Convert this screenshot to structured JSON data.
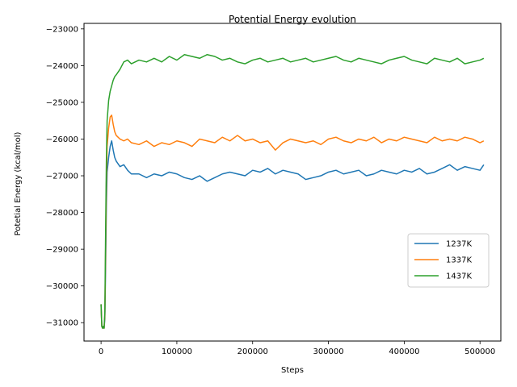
{
  "chart_data": {
    "type": "line",
    "title": "Potential Energy evolution",
    "xlabel": "Steps",
    "ylabel": "Potetial Energy (kcal/mol)",
    "xlim": [
      -22500,
      527500
    ],
    "ylim": [
      -31500,
      -22850
    ],
    "xticks": [
      0,
      100000,
      200000,
      300000,
      400000,
      500000
    ],
    "xtick_labels": [
      "0",
      "100000",
      "200000",
      "300000",
      "400000",
      "500000"
    ],
    "yticks": [
      -31000,
      -30000,
      -29000,
      -28000,
      -27000,
      -26000,
      -25000,
      -24000,
      -23000
    ],
    "ytick_labels": [
      "−31000",
      "−30000",
      "−29000",
      "−28000",
      "−27000",
      "−26000",
      "−25000",
      "−24000",
      "−23000"
    ],
    "grid": false,
    "legend_position": "center-right",
    "series": [
      {
        "name": "1237K",
        "color": "#1f77b4",
        "x": [
          0,
          1000,
          2000,
          3000,
          4000,
          5000,
          6000,
          7000,
          8000,
          10000,
          12000,
          14000,
          16000,
          18000,
          20000,
          25000,
          30000,
          35000,
          40000,
          50000,
          60000,
          70000,
          80000,
          90000,
          100000,
          110000,
          120000,
          130000,
          140000,
          150000,
          160000,
          170000,
          180000,
          190000,
          200000,
          210000,
          220000,
          230000,
          240000,
          250000,
          260000,
          270000,
          280000,
          290000,
          300000,
          310000,
          320000,
          330000,
          340000,
          350000,
          360000,
          370000,
          380000,
          390000,
          400000,
          410000,
          420000,
          430000,
          440000,
          450000,
          460000,
          470000,
          480000,
          490000,
          500000,
          505000
        ],
        "y": [
          -30500,
          -31100,
          -31150,
          -31100,
          -31150,
          -30900,
          -29500,
          -27800,
          -26900,
          -26500,
          -26200,
          -26050,
          -26300,
          -26500,
          -26600,
          -26750,
          -26700,
          -26850,
          -26950,
          -26950,
          -27050,
          -26950,
          -27000,
          -26900,
          -26950,
          -27050,
          -27100,
          -27000,
          -27150,
          -27050,
          -26950,
          -26900,
          -26950,
          -27000,
          -26850,
          -26900,
          -26800,
          -26950,
          -26850,
          -26900,
          -26950,
          -27100,
          -27050,
          -27000,
          -26900,
          -26850,
          -26950,
          -26900,
          -26850,
          -27000,
          -26950,
          -26850,
          -26900,
          -26950,
          -26850,
          -26900,
          -26800,
          -26950,
          -26900,
          -26800,
          -26700,
          -26850,
          -26750,
          -26800,
          -26850,
          -26700
        ]
      },
      {
        "name": "1337K",
        "color": "#ff7f0e",
        "x": [
          0,
          1000,
          2000,
          3000,
          4000,
          5000,
          6000,
          7000,
          8000,
          10000,
          12000,
          14000,
          16000,
          18000,
          20000,
          25000,
          30000,
          35000,
          40000,
          50000,
          60000,
          70000,
          80000,
          90000,
          100000,
          110000,
          120000,
          130000,
          140000,
          150000,
          160000,
          170000,
          180000,
          190000,
          200000,
          210000,
          220000,
          230000,
          240000,
          250000,
          260000,
          270000,
          280000,
          290000,
          300000,
          310000,
          320000,
          330000,
          340000,
          350000,
          360000,
          370000,
          380000,
          390000,
          400000,
          410000,
          420000,
          430000,
          440000,
          450000,
          460000,
          470000,
          480000,
          490000,
          500000,
          505000
        ],
        "y": [
          -30500,
          -31100,
          -31150,
          -31100,
          -31150,
          -30800,
          -29000,
          -27200,
          -26200,
          -25700,
          -25400,
          -25350,
          -25600,
          -25800,
          -25900,
          -26000,
          -26050,
          -26000,
          -26100,
          -26150,
          -26050,
          -26200,
          -26100,
          -26150,
          -26050,
          -26100,
          -26200,
          -26000,
          -26050,
          -26100,
          -25950,
          -26050,
          -25900,
          -26050,
          -26000,
          -26100,
          -26050,
          -26300,
          -26100,
          -26000,
          -26050,
          -26100,
          -26050,
          -26150,
          -26000,
          -25950,
          -26050,
          -26100,
          -26000,
          -26050,
          -25950,
          -26100,
          -26000,
          -26050,
          -25950,
          -26000,
          -26050,
          -26100,
          -25950,
          -26050,
          -26000,
          -26050,
          -25950,
          -26000,
          -26100,
          -26050
        ]
      },
      {
        "name": "1437K",
        "color": "#2ca02c",
        "x": [
          0,
          1000,
          2000,
          3000,
          4000,
          5000,
          6000,
          7000,
          8000,
          10000,
          12000,
          14000,
          16000,
          18000,
          20000,
          25000,
          30000,
          35000,
          40000,
          50000,
          60000,
          70000,
          80000,
          90000,
          100000,
          110000,
          120000,
          130000,
          140000,
          150000,
          160000,
          170000,
          180000,
          190000,
          200000,
          210000,
          220000,
          230000,
          240000,
          250000,
          260000,
          270000,
          280000,
          290000,
          300000,
          310000,
          320000,
          330000,
          340000,
          350000,
          360000,
          370000,
          380000,
          390000,
          400000,
          410000,
          420000,
          430000,
          440000,
          450000,
          460000,
          470000,
          480000,
          490000,
          500000,
          505000
        ],
        "y": [
          -30500,
          -31100,
          -31150,
          -31100,
          -31150,
          -30700,
          -28500,
          -26600,
          -25500,
          -24950,
          -24700,
          -24550,
          -24400,
          -24300,
          -24250,
          -24100,
          -23900,
          -23850,
          -23950,
          -23850,
          -23900,
          -23800,
          -23900,
          -23750,
          -23850,
          -23700,
          -23750,
          -23800,
          -23700,
          -23750,
          -23850,
          -23800,
          -23900,
          -23950,
          -23850,
          -23800,
          -23900,
          -23850,
          -23800,
          -23900,
          -23850,
          -23800,
          -23900,
          -23850,
          -23800,
          -23750,
          -23850,
          -23900,
          -23800,
          -23850,
          -23900,
          -23950,
          -23850,
          -23800,
          -23750,
          -23850,
          -23900,
          -23950,
          -23800,
          -23850,
          -23900,
          -23800,
          -23950,
          -23900,
          -23850,
          -23800
        ]
      }
    ]
  }
}
